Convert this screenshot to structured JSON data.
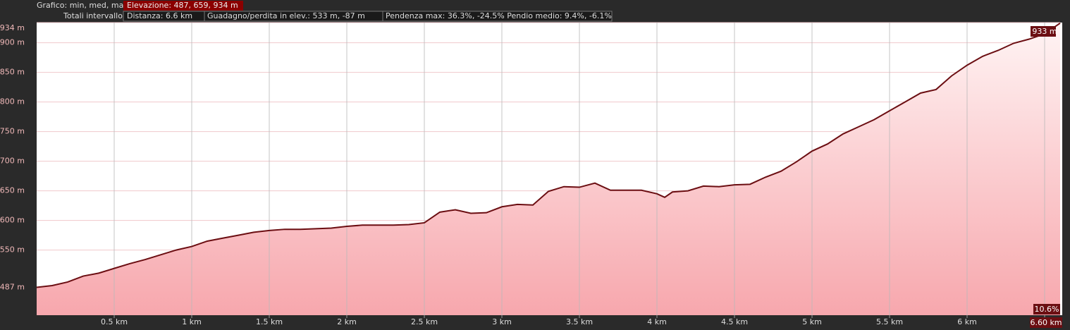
{
  "header": {
    "chart_label": "Grafico: min, med, max",
    "elevation": "Elevazione: 487, 659, 934 m",
    "totals_label": "Totali intervallo:",
    "distance": "Distanza: 6.6 km",
    "gain_loss": "Guadagno/perdita in elev.: 533 m, -87 m",
    "slope": "Pendenza max: 36.3%, -24.5% Pendio medio: 9.4%, -6.1%"
  },
  "chart_data": {
    "type": "area",
    "x": [
      0,
      0.1,
      0.2,
      0.3,
      0.4,
      0.5,
      0.6,
      0.7,
      0.8,
      0.9,
      1.0,
      1.1,
      1.2,
      1.3,
      1.4,
      1.5,
      1.6,
      1.7,
      1.8,
      1.9,
      2.0,
      2.1,
      2.2,
      2.3,
      2.4,
      2.5,
      2.6,
      2.7,
      2.8,
      2.9,
      3.0,
      3.1,
      3.2,
      3.3,
      3.4,
      3.5,
      3.6,
      3.7,
      3.8,
      3.9,
      4.0,
      4.05,
      4.1,
      4.2,
      4.3,
      4.4,
      4.5,
      4.6,
      4.7,
      4.8,
      4.9,
      5.0,
      5.1,
      5.2,
      5.3,
      5.4,
      5.5,
      5.6,
      5.7,
      5.8,
      5.9,
      6.0,
      6.1,
      6.2,
      6.3,
      6.4,
      6.5,
      6.6
    ],
    "series": [
      {
        "name": "Elevazione",
        "color": "#6b0e12",
        "values": [
          487,
          490,
          496,
          506,
          511,
          519,
          527,
          534,
          542,
          550,
          556,
          565,
          570,
          575,
          580,
          583,
          585,
          585,
          586,
          587,
          590,
          592,
          592,
          592,
          593,
          596,
          614,
          618,
          612,
          613,
          623,
          627,
          626,
          649,
          657,
          656,
          663,
          651,
          651,
          651,
          645,
          639,
          648,
          650,
          658,
          657,
          660,
          661,
          673,
          683,
          699,
          717,
          729,
          746,
          758,
          770,
          785,
          800,
          815,
          821,
          844,
          862,
          877,
          887,
          899,
          906,
          915,
          933
        ]
      }
    ],
    "xlim": [
      0,
      6.6
    ],
    "ylim": [
      440,
      934
    ],
    "xticks": [
      {
        "value": 0.5,
        "label": "0.5 km"
      },
      {
        "value": 1,
        "label": "1 km"
      },
      {
        "value": 1.5,
        "label": "1.5 km"
      },
      {
        "value": 2,
        "label": "2 km"
      },
      {
        "value": 2.5,
        "label": "2.5 km"
      },
      {
        "value": 3,
        "label": "3 km"
      },
      {
        "value": 3.5,
        "label": "3.5 km"
      },
      {
        "value": 4,
        "label": "4 km"
      },
      {
        "value": 4.5,
        "label": "4.5 km"
      },
      {
        "value": 5,
        "label": "5 km"
      },
      {
        "value": 5.5,
        "label": "5.5 km"
      },
      {
        "value": 6,
        "label": "6 km"
      },
      {
        "value": 6.5,
        "label": "6.5 km"
      }
    ],
    "yticks": [
      {
        "value": 487,
        "label": "487 m"
      },
      {
        "value": 550,
        "label": "550 m"
      },
      {
        "value": 600,
        "label": "600 m"
      },
      {
        "value": 650,
        "label": "650 m"
      },
      {
        "value": 700,
        "label": "700 m"
      },
      {
        "value": 750,
        "label": "750 m"
      },
      {
        "value": 800,
        "label": "800 m"
      },
      {
        "value": 850,
        "label": "850 m"
      },
      {
        "value": 900,
        "label": "900 m"
      },
      {
        "value": 934,
        "label": "934 m"
      }
    ],
    "grid": true,
    "annotations": {
      "end_elevation": "933 m",
      "end_slope": "10.6%",
      "end_distance": "6.60 km"
    }
  }
}
